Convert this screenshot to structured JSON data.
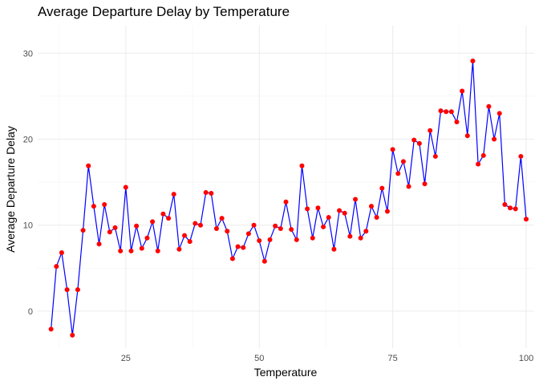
{
  "chart_data": {
    "type": "line",
    "title": "Average Departure Delay by Temperature",
    "xlabel": "Temperature",
    "ylabel": "Average Departure Delay",
    "xlim": [
      8.5,
      101.5
    ],
    "ylim": [
      -4.3,
      33.2
    ],
    "x_ticks": [
      25,
      50,
      75,
      100
    ],
    "y_ticks": [
      0,
      10,
      20,
      30
    ],
    "grid": true,
    "legend": "none",
    "line_color": "#0000ff",
    "point_color": "#ff0000",
    "series": [
      {
        "x": [
          11,
          12,
          13,
          14,
          15,
          16,
          17,
          18,
          19,
          20,
          21,
          22,
          23,
          24,
          25,
          26,
          27,
          28,
          29,
          30,
          31,
          32,
          33,
          34,
          35,
          36,
          37,
          38,
          39,
          40,
          41,
          42,
          43,
          44,
          45,
          46,
          47,
          48,
          49,
          50,
          51,
          52,
          53,
          54,
          55,
          56,
          57,
          58,
          59,
          60,
          61,
          62,
          63,
          64,
          65,
          66,
          67,
          68,
          69,
          70,
          71,
          72,
          73,
          74,
          75,
          76,
          77,
          78,
          79,
          80,
          81,
          82,
          83,
          84,
          85,
          86,
          87,
          88,
          89,
          90,
          91,
          92,
          93,
          94,
          95,
          96,
          97,
          98,
          99,
          100
        ],
        "y": [
          -2.1,
          5.2,
          6.8,
          2.5,
          -2.8,
          2.5,
          9.4,
          16.9,
          12.2,
          7.8,
          12.4,
          9.2,
          9.7,
          7.0,
          14.4,
          7.0,
          9.9,
          7.3,
          8.5,
          10.4,
          7.0,
          11.3,
          10.8,
          13.6,
          7.2,
          8.8,
          8.1,
          10.2,
          10.0,
          13.8,
          13.7,
          9.6,
          10.8,
          9.3,
          6.1,
          7.5,
          7.4,
          9.0,
          10.0,
          8.2,
          5.8,
          8.3,
          9.9,
          9.6,
          12.7,
          9.5,
          8.3,
          16.9,
          11.9,
          8.5,
          12.0,
          9.8,
          10.9,
          7.2,
          11.7,
          11.4,
          8.7,
          13.0,
          8.5,
          9.3,
          12.2,
          10.9,
          14.3,
          11.6,
          18.8,
          16.0,
          17.4,
          14.5,
          19.9,
          19.5,
          14.8,
          21.0,
          18.0,
          23.3,
          23.2,
          23.2,
          22.0,
          25.6,
          20.4,
          29.1,
          17.1,
          18.1,
          23.8,
          20.0,
          23.0,
          12.4,
          12.0,
          11.9,
          18.0,
          10.7
        ]
      }
    ]
  }
}
